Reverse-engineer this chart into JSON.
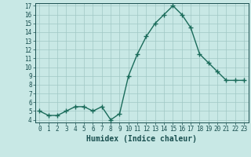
{
  "x": [
    0,
    1,
    2,
    3,
    4,
    5,
    6,
    7,
    8,
    9,
    10,
    11,
    12,
    13,
    14,
    15,
    16,
    17,
    18,
    19,
    20,
    21,
    22,
    23
  ],
  "y": [
    5.0,
    4.5,
    4.5,
    5.0,
    5.5,
    5.5,
    5.0,
    5.5,
    4.0,
    4.7,
    9.0,
    11.5,
    13.5,
    15.0,
    16.0,
    17.0,
    16.0,
    14.5,
    11.5,
    10.5,
    9.5,
    8.5,
    8.5,
    8.5
  ],
  "line_color": "#1a6b5a",
  "marker": "+",
  "bg_color": "#c8e8e5",
  "grid_color": "#a0c8c4",
  "xlabel": "Humidex (Indice chaleur)",
  "ylim_min": 4,
  "ylim_max": 17,
  "xlim_min": 0,
  "xlim_max": 23,
  "yticks": [
    4,
    5,
    6,
    7,
    8,
    9,
    10,
    11,
    12,
    13,
    14,
    15,
    16,
    17
  ],
  "xticks": [
    0,
    1,
    2,
    3,
    4,
    5,
    6,
    7,
    8,
    9,
    10,
    11,
    12,
    13,
    14,
    15,
    16,
    17,
    18,
    19,
    20,
    21,
    22,
    23
  ],
  "font_color": "#1a5050",
  "linewidth": 1.0,
  "markersize": 4,
  "tick_fontsize": 5.5,
  "xlabel_fontsize": 7.0
}
